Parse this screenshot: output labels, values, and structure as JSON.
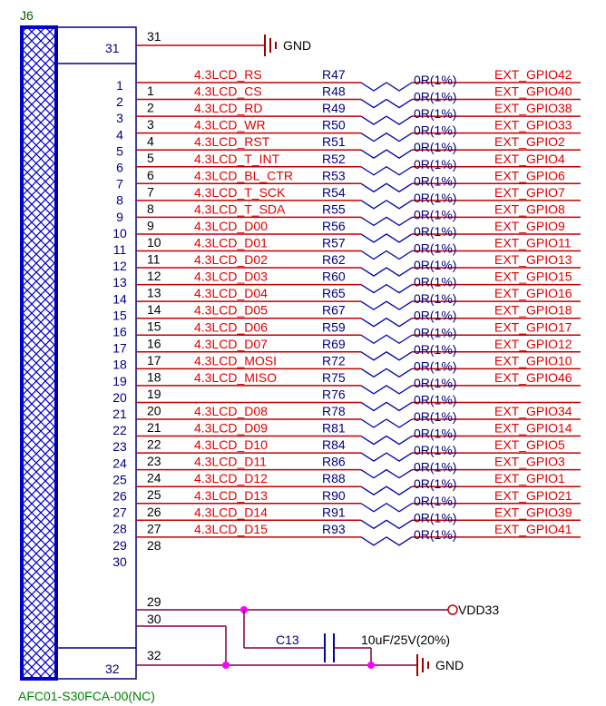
{
  "connector": {
    "ref": "J6",
    "part": "AFC01-S30FCA-00(NC)",
    "top_pin": "31",
    "bottom_pin": "32",
    "side_pins_left": [
      "1",
      "2",
      "3",
      "4",
      "5",
      "6",
      "7",
      "8",
      "9",
      "10",
      "11",
      "12",
      "13",
      "14",
      "15",
      "16",
      "17",
      "18",
      "19",
      "20",
      "21",
      "22",
      "23",
      "24",
      "25",
      "26",
      "27",
      "28",
      "29",
      "30"
    ]
  },
  "pins": [
    {
      "n": "1",
      "net": "4.3LCD_RS",
      "res": "R47",
      "val": "0R(1%)",
      "gpio": "EXT_GPIO42"
    },
    {
      "n": "2",
      "net": "4.3LCD_CS",
      "res": "R48",
      "val": "0R(1%)",
      "gpio": "EXT_GPIO40"
    },
    {
      "n": "3",
      "net": "4.3LCD_RD",
      "res": "R49",
      "val": "0R(1%)",
      "gpio": "EXT_GPIO38"
    },
    {
      "n": "4",
      "net": "4.3LCD_WR",
      "res": "R50",
      "val": "0R(1%)",
      "gpio": "EXT_GPIO33"
    },
    {
      "n": "5",
      "net": "4.3LCD_RST",
      "res": "R51",
      "val": "0R(1%)",
      "gpio": "EXT_GPIO2"
    },
    {
      "n": "6",
      "net": "4.3LCD_T_INT",
      "res": "R52",
      "val": "0R(1%)",
      "gpio": "EXT_GPIO4"
    },
    {
      "n": "7",
      "net": "4.3LCD_BL_CTR",
      "res": "R53",
      "val": "0R(1%)",
      "gpio": "EXT_GPIO6"
    },
    {
      "n": "8",
      "net": "4.3LCD_T_SCK",
      "res": "R54",
      "val": "0R(1%)",
      "gpio": "EXT_GPIO7"
    },
    {
      "n": "9",
      "net": "4.3LCD_T_SDA",
      "res": "R55",
      "val": "0R(1%)",
      "gpio": "EXT_GPIO8"
    },
    {
      "n": "10",
      "net": "4.3LCD_D00",
      "res": "R56",
      "val": "0R(1%)",
      "gpio": "EXT_GPIO9"
    },
    {
      "n": "11",
      "net": "4.3LCD_D01",
      "res": "R57",
      "val": "0R(1%)",
      "gpio": "EXT_GPIO11"
    },
    {
      "n": "12",
      "net": "4.3LCD_D02",
      "res": "R62",
      "val": "0R(1%)",
      "gpio": "EXT_GPIO13"
    },
    {
      "n": "13",
      "net": "4.3LCD_D03",
      "res": "R60",
      "val": "0R(1%)",
      "gpio": "EXT_GPIO15"
    },
    {
      "n": "14",
      "net": "4.3LCD_D04",
      "res": "R65",
      "val": "0R(1%)",
      "gpio": "EXT_GPIO16"
    },
    {
      "n": "15",
      "net": "4.3LCD_D05",
      "res": "R67",
      "val": "0R(1%)",
      "gpio": "EXT_GPIO18"
    },
    {
      "n": "16",
      "net": "4.3LCD_D06",
      "res": "R59",
      "val": "0R(1%)",
      "gpio": "EXT_GPIO17"
    },
    {
      "n": "17",
      "net": "4.3LCD_D07",
      "res": "R69",
      "val": "0R(1%)",
      "gpio": "EXT_GPIO12"
    },
    {
      "n": "18",
      "net": "4.3LCD_MOSI",
      "res": "R72",
      "val": "0R(1%)",
      "gpio": "EXT_GPIO10"
    },
    {
      "n": "19",
      "net": "4.3LCD_MISO",
      "res": "R75",
      "val": "0R(1%)",
      "gpio": "EXT_GPIO46"
    },
    {
      "n": "20",
      "net": "",
      "res": "R76",
      "val": "0R(1%)",
      "gpio": ""
    },
    {
      "n": "21",
      "net": "4.3LCD_D08",
      "res": "R78",
      "val": "0R(1%)",
      "gpio": "EXT_GPIO34"
    },
    {
      "n": "22",
      "net": "4.3LCD_D09",
      "res": "R81",
      "val": "0R(1%)",
      "gpio": "EXT_GPIO14"
    },
    {
      "n": "23",
      "net": "4.3LCD_D10",
      "res": "R84",
      "val": "0R(1%)",
      "gpio": "EXT_GPIO5"
    },
    {
      "n": "24",
      "net": "4.3LCD_D11",
      "res": "R86",
      "val": "0R(1%)",
      "gpio": "EXT_GPIO3"
    },
    {
      "n": "25",
      "net": "4.3LCD_D12",
      "res": "R88",
      "val": "0R(1%)",
      "gpio": "EXT_GPIO1"
    },
    {
      "n": "26",
      "net": "4.3LCD_D13",
      "res": "R90",
      "val": "0R(1%)",
      "gpio": "EXT_GPIO21"
    },
    {
      "n": "27",
      "net": "4.3LCD_D14",
      "res": "R91",
      "val": "0R(1%)",
      "gpio": "EXT_GPIO39"
    },
    {
      "n": "28",
      "net": "4.3LCD_D15",
      "res": "R93",
      "val": "0R(1%)",
      "gpio": "EXT_GPIO41"
    }
  ],
  "extra_pins": {
    "p29": "29",
    "p30": "30",
    "p31": "31",
    "p32": "32"
  },
  "power": {
    "gnd_top": "GND",
    "gnd_bottom": "GND",
    "vdd": "VDD33"
  },
  "capacitor": {
    "ref": "C13",
    "val": "10uF/25V(20%)"
  },
  "colors": {
    "wire": "#c00000",
    "component": "#0000aa",
    "text_net": "#e00000",
    "text_ref": "#000080",
    "part": "#008000",
    "hatch": "#0000cc",
    "junction": "#ff00ff",
    "power": "#990000",
    "wire_dark": "#800040"
  }
}
